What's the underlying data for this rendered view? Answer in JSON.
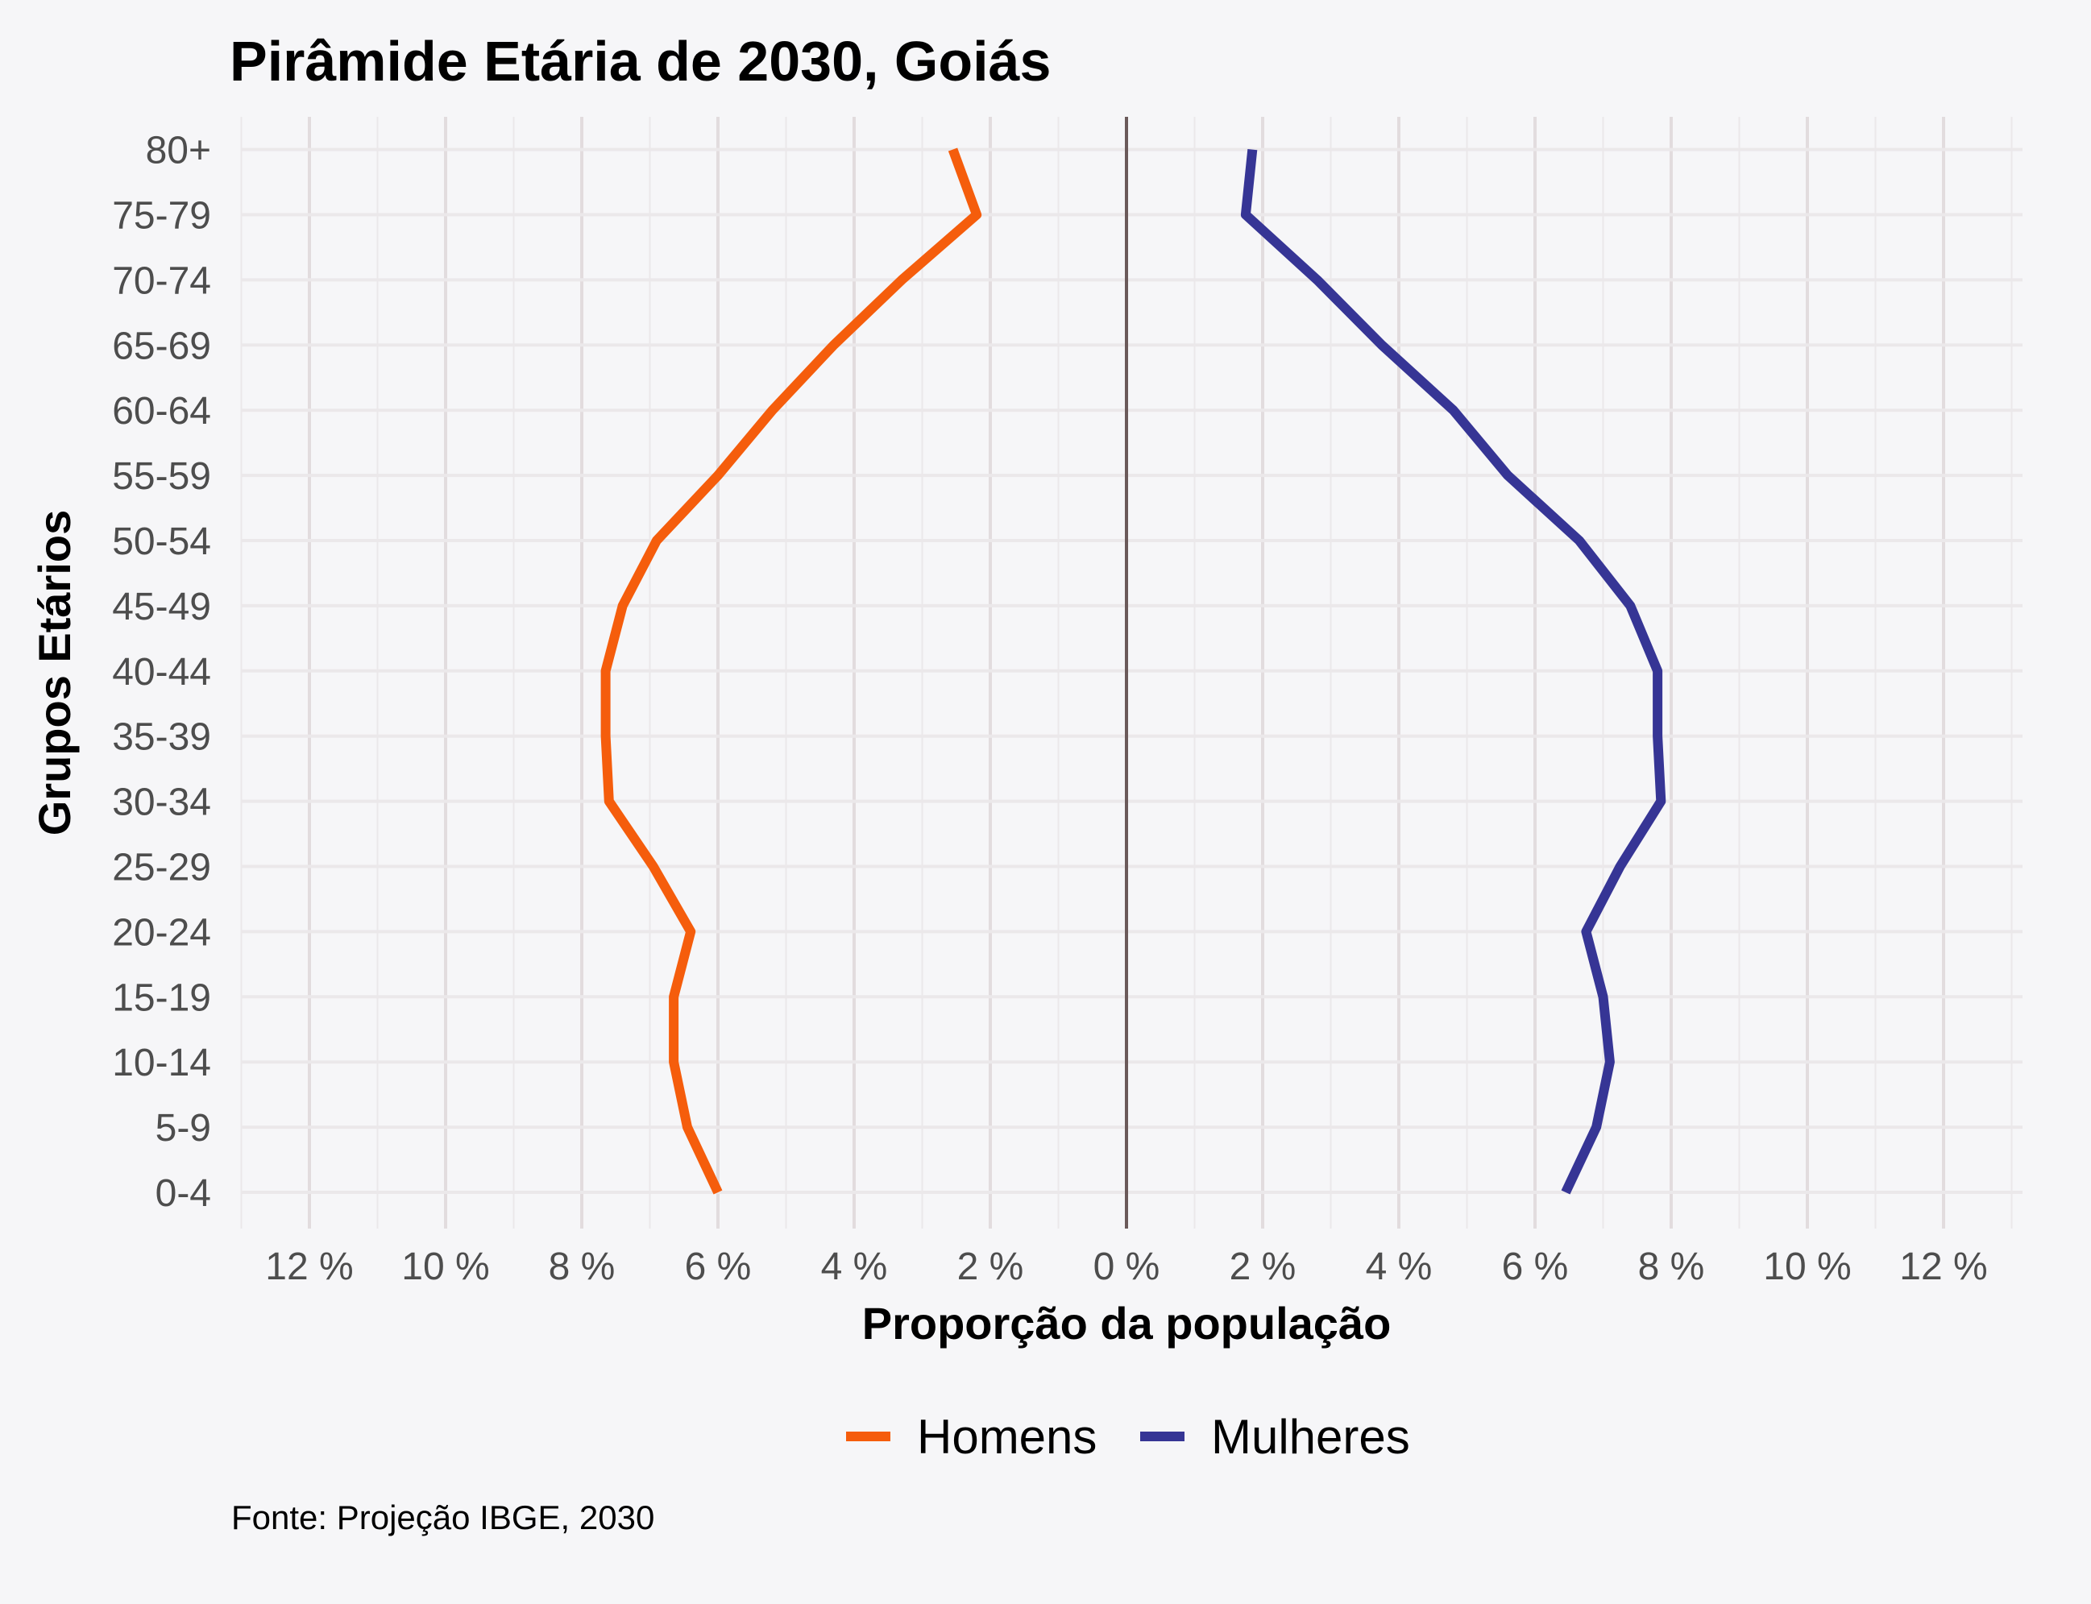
{
  "chart_data": {
    "type": "line",
    "title": "Pirâmide Etária de 2030, Goiás",
    "xlabel": "Proporção da população",
    "ylabel": "Grupos Etários",
    "caption": "Fonte: Projeção IBGE, 2030",
    "categories": [
      "0-4",
      "5-9",
      "10-14",
      "15-19",
      "20-24",
      "25-29",
      "30-34",
      "35-39",
      "40-44",
      "45-49",
      "50-54",
      "55-59",
      "60-64",
      "65-69",
      "70-74",
      "75-79",
      "80+"
    ],
    "x_ticks": [
      -12,
      -10,
      -8,
      -6,
      -4,
      -2,
      0,
      2,
      4,
      6,
      8,
      10,
      12
    ],
    "x_tick_labels": [
      "12 %",
      "10 %",
      "8 %",
      "6 %",
      "4 %",
      "2 %",
      "0 %",
      "2 %",
      "4 %",
      "6 %",
      "8 %",
      "10 %",
      "12 %"
    ],
    "xlim": [
      -13,
      13
    ],
    "grid": true,
    "legend_position": "bottom",
    "series": [
      {
        "name": "Homens",
        "color": "#f55d0c",
        "values": [
          -6.0,
          -6.45,
          -6.65,
          -6.65,
          -6.4,
          -6.95,
          -7.6,
          -7.65,
          -7.65,
          -7.4,
          -6.9,
          -6.0,
          -5.2,
          -4.3,
          -3.3,
          -2.2,
          -2.55
        ]
      },
      {
        "name": "Mulheres",
        "color": "#363595",
        "values": [
          6.45,
          6.9,
          7.1,
          7.0,
          6.75,
          7.25,
          7.85,
          7.8,
          7.8,
          7.4,
          6.65,
          5.6,
          4.8,
          3.75,
          2.8,
          1.75,
          1.85
        ]
      }
    ],
    "zero_line_color": "#6b5a5a"
  }
}
